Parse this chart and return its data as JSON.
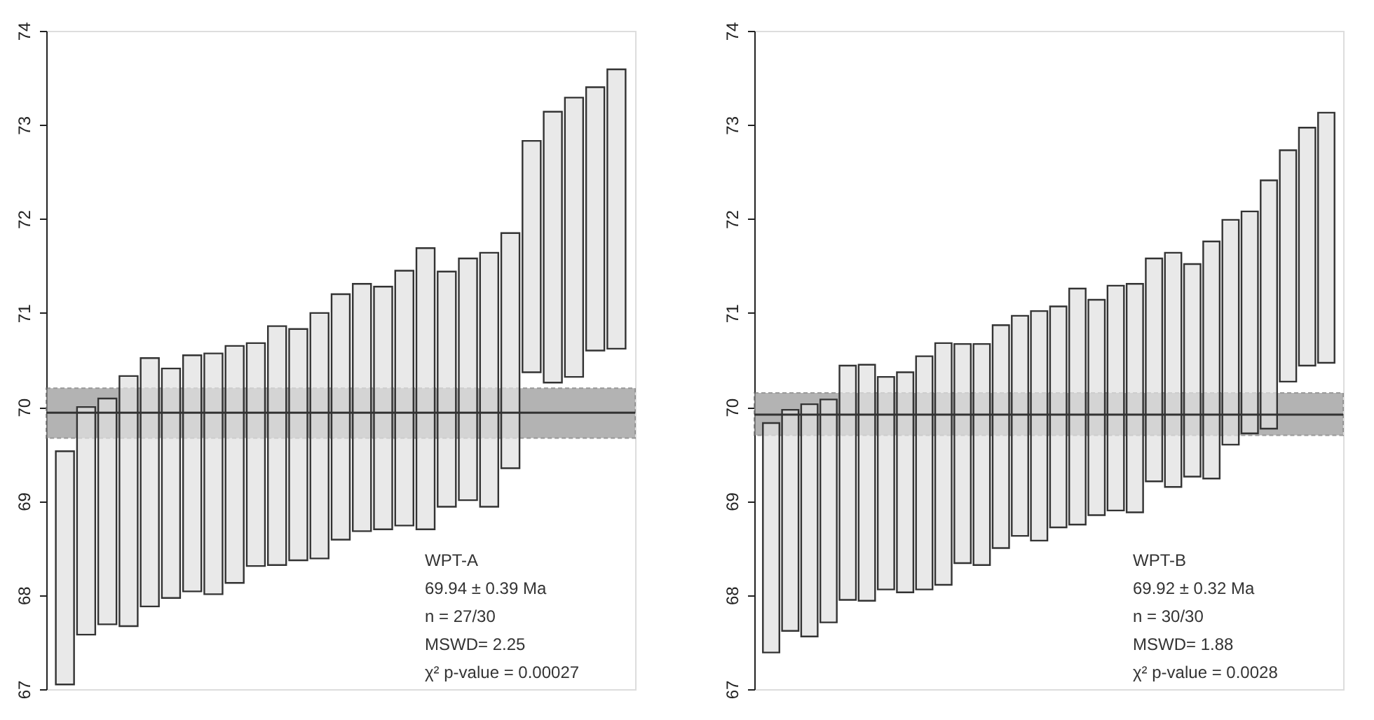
{
  "chart_data": [
    {
      "type": "bar",
      "categories": [
        null,
        null,
        null,
        null,
        null,
        null,
        null,
        null,
        null,
        null,
        null,
        null,
        null,
        null,
        null,
        null,
        null,
        null,
        null,
        null,
        null,
        null,
        null,
        null,
        null,
        null,
        null
      ],
      "base": [
        67.05,
        67.58,
        67.69,
        67.67,
        67.88,
        67.97,
        68.04,
        68.01,
        68.13,
        68.31,
        68.32,
        68.37,
        68.39,
        68.59,
        68.68,
        68.7,
        68.74,
        68.7,
        68.94,
        69.01,
        68.94,
        69.35,
        70.37,
        70.26,
        70.32,
        70.6,
        70.62
      ],
      "values": [
        2.48,
        2.42,
        2.4,
        2.66,
        2.64,
        2.44,
        2.51,
        2.56,
        2.52,
        2.37,
        2.54,
        2.46,
        2.61,
        2.61,
        2.63,
        2.58,
        2.71,
        2.99,
        2.5,
        2.57,
        2.7,
        2.5,
        2.46,
        2.88,
        2.97,
        2.8,
        2.97
      ],
      "color": "#e0e0e0",
      "ylim": [
        67,
        74
      ],
      "yticks": [
        67,
        68,
        69,
        70,
        71,
        72,
        73,
        74
      ],
      "tick_labels": "y",
      "grid": false,
      "ref_lines": [
        {
          "axis": "y",
          "value": 69.94,
          "color": "#333333"
        }
      ],
      "bands": [
        {
          "axis": "y",
          "from": 69.67,
          "to": 70.2,
          "color": "#9a9a9a"
        }
      ],
      "annotations": [
        "WPT-A",
        "69.94 ± 0.39 Ma",
        "n = 27/30",
        "MSWD= 2.25",
        "χ² p-value = 0.00027"
      ]
    },
    {
      "type": "bar",
      "categories": [
        null,
        null,
        null,
        null,
        null,
        null,
        null,
        null,
        null,
        null,
        null,
        null,
        null,
        null,
        null,
        null,
        null,
        null,
        null,
        null,
        null,
        null,
        null,
        null,
        null,
        null,
        null,
        null,
        null,
        null
      ],
      "base": [
        67.39,
        67.62,
        67.56,
        67.71,
        67.95,
        67.94,
        68.06,
        68.03,
        68.06,
        68.11,
        68.34,
        68.32,
        68.5,
        68.63,
        68.58,
        68.72,
        68.75,
        68.85,
        68.9,
        68.88,
        69.21,
        69.15,
        69.26,
        69.24,
        69.6,
        69.72,
        69.77,
        70.27,
        70.44,
        70.47
      ],
      "values": [
        2.44,
        2.35,
        2.47,
        2.37,
        2.49,
        2.51,
        2.26,
        2.34,
        2.48,
        2.57,
        2.33,
        2.35,
        2.37,
        2.34,
        2.44,
        2.35,
        2.51,
        2.29,
        2.39,
        2.43,
        2.37,
        2.49,
        2.26,
        2.52,
        2.39,
        2.36,
        2.64,
        2.46,
        2.53,
        2.66
      ],
      "color": "#e0e0e0",
      "ylim": [
        67,
        74
      ],
      "yticks": [
        67,
        68,
        69,
        70,
        71,
        72,
        73,
        74
      ],
      "tick_labels": "y",
      "grid": false,
      "ref_lines": [
        {
          "axis": "y",
          "value": 69.92,
          "color": "#333333"
        }
      ],
      "bands": [
        {
          "axis": "y",
          "from": 69.7,
          "to": 70.15,
          "color": "#9a9a9a"
        }
      ],
      "annotations": [
        "WPT-B",
        "69.92 ± 0.32 Ma",
        "n = 30/30",
        "MSWD= 1.88",
        "χ² p-value = 0.0028"
      ]
    }
  ]
}
